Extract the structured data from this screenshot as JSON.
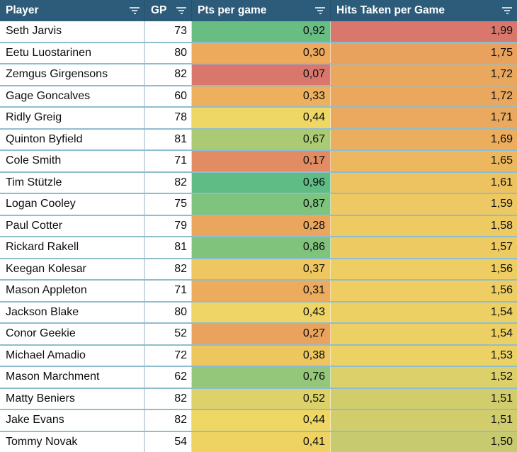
{
  "colors": {
    "header_bg": "#2d5c7b",
    "header_text": "#ffffff",
    "row_separator": "#8fbdd0",
    "column_separator": "#c9d8e0",
    "filter_icon": "#c6d8e2",
    "cell_text": "#0d0e0e"
  },
  "table": {
    "columns": [
      {
        "label": "Player",
        "filter_icon": "filter-funnel"
      },
      {
        "label": "GP",
        "filter_icon": "filter-funnel"
      },
      {
        "label": "Pts per game",
        "filter_icon": "filter-funnel"
      },
      {
        "label": "Hits Taken per Game",
        "filter_icon": "filter-funnel"
      }
    ],
    "rows": [
      {
        "player": "Seth Jarvis",
        "gp": "73",
        "pts": "0,92",
        "pts_bg": "#68bd82",
        "hits": "1,99",
        "hits_bg": "#d9776c"
      },
      {
        "player": "Eetu Luostarinen",
        "gp": "80",
        "pts": "0,30",
        "pts_bg": "#edaa5d",
        "hits": "1,75",
        "hits_bg": "#e9a25d"
      },
      {
        "player": "Zemgus Girgensons",
        "gp": "82",
        "pts": "0,07",
        "pts_bg": "#d9776c",
        "hits": "1,72",
        "hits_bg": "#eaa75e"
      },
      {
        "player": "Gage Goncalves",
        "gp": "60",
        "pts": "0,33",
        "pts_bg": "#ecb05e",
        "hits": "1,72",
        "hits_bg": "#eaa75e"
      },
      {
        "player": "Ridly Greig",
        "gp": "78",
        "pts": "0,44",
        "pts_bg": "#eed764",
        "hits": "1,71",
        "hits_bg": "#eaa95e"
      },
      {
        "player": "Quinton Byfield",
        "gp": "81",
        "pts": "0,67",
        "pts_bg": "#aacb74",
        "hits": "1,69",
        "hits_bg": "#ebad5e"
      },
      {
        "player": "Cole Smith",
        "gp": "71",
        "pts": "0,17",
        "pts_bg": "#e18c63",
        "hits": "1,65",
        "hits_bg": "#ecb75f"
      },
      {
        "player": "Tim Stützle",
        "gp": "82",
        "pts": "0,96",
        "pts_bg": "#5fbc85",
        "hits": "1,61",
        "hits_bg": "#edc260"
      },
      {
        "player": "Logan Cooley",
        "gp": "75",
        "pts": "0,87",
        "pts_bg": "#7ec37e",
        "hits": "1,59",
        "hits_bg": "#eec862"
      },
      {
        "player": "Paul Cotter",
        "gp": "79",
        "pts": "0,28",
        "pts_bg": "#eba65d",
        "hits": "1,58",
        "hits_bg": "#eeca62"
      },
      {
        "player": "Rickard Rakell",
        "gp": "81",
        "pts": "0,86",
        "pts_bg": "#80c37d",
        "hits": "1,57",
        "hits_bg": "#eecb62"
      },
      {
        "player": "Keegan Kolesar",
        "gp": "82",
        "pts": "0,37",
        "pts_bg": "#eec761",
        "hits": "1,56",
        "hits_bg": "#eecd63"
      },
      {
        "player": "Mason Appleton",
        "gp": "71",
        "pts": "0,31",
        "pts_bg": "#ecab5d",
        "hits": "1,56",
        "hits_bg": "#eecd63"
      },
      {
        "player": "Jackson Blake",
        "gp": "80",
        "pts": "0,43",
        "pts_bg": "#eed565",
        "hits": "1,54",
        "hits_bg": "#edd064"
      },
      {
        "player": "Conor Geekie",
        "gp": "52",
        "pts": "0,27",
        "pts_bg": "#e9a35c",
        "hits": "1,54",
        "hits_bg": "#edd064"
      },
      {
        "player": "Michael Amadio",
        "gp": "72",
        "pts": "0,38",
        "pts_bg": "#edc660",
        "hits": "1,53",
        "hits_bg": "#ecd165"
      },
      {
        "player": "Mason Marchment",
        "gp": "62",
        "pts": "0,76",
        "pts_bg": "#95c77b",
        "hits": "1,52",
        "hits_bg": "#dcd06a"
      },
      {
        "player": "Matty Beniers",
        "gp": "82",
        "pts": "0,52",
        "pts_bg": "#ddd169",
        "hits": "1,51",
        "hits_bg": "#d1cd6d"
      },
      {
        "player": "Jake Evans",
        "gp": "82",
        "pts": "0,44",
        "pts_bg": "#eed764",
        "hits": "1,51",
        "hits_bg": "#d1cd6d"
      },
      {
        "player": "Tommy Novak",
        "gp": "54",
        "pts": "0,41",
        "pts_bg": "#eed262",
        "hits": "1,50",
        "hits_bg": "#c8ca70"
      }
    ]
  },
  "chart_data": {
    "type": "table",
    "title": "",
    "columns": [
      "Player",
      "GP",
      "Pts per game",
      "Hits Taken per Game"
    ],
    "rows": [
      [
        "Seth Jarvis",
        73,
        0.92,
        1.99
      ],
      [
        "Eetu Luostarinen",
        80,
        0.3,
        1.75
      ],
      [
        "Zemgus Girgensons",
        82,
        0.07,
        1.72
      ],
      [
        "Gage Goncalves",
        60,
        0.33,
        1.72
      ],
      [
        "Ridly Greig",
        78,
        0.44,
        1.71
      ],
      [
        "Quinton Byfield",
        81,
        0.67,
        1.69
      ],
      [
        "Cole Smith",
        71,
        0.17,
        1.65
      ],
      [
        "Tim Stützle",
        82,
        0.96,
        1.61
      ],
      [
        "Logan Cooley",
        75,
        0.87,
        1.59
      ],
      [
        "Paul Cotter",
        79,
        0.28,
        1.58
      ],
      [
        "Rickard Rakell",
        81,
        0.86,
        1.57
      ],
      [
        "Keegan Kolesar",
        82,
        0.37,
        1.56
      ],
      [
        "Mason Appleton",
        71,
        0.31,
        1.56
      ],
      [
        "Jackson Blake",
        80,
        0.43,
        1.54
      ],
      [
        "Conor Geekie",
        52,
        0.27,
        1.54
      ],
      [
        "Michael Amadio",
        72,
        0.38,
        1.53
      ],
      [
        "Mason Marchment",
        62,
        0.76,
        1.52
      ],
      [
        "Matty Beniers",
        82,
        0.52,
        1.51
      ],
      [
        "Jake Evans",
        82,
        0.44,
        1.51
      ],
      [
        "Tommy Novak",
        54,
        0.41,
        1.5
      ]
    ],
    "notes": "Heatmap-colored table; Pts per game and Hits Taken per Game cells use a red-yellow-green diverging color scale; decimal comma formatting; sorted descending by Hits Taken per Game"
  }
}
